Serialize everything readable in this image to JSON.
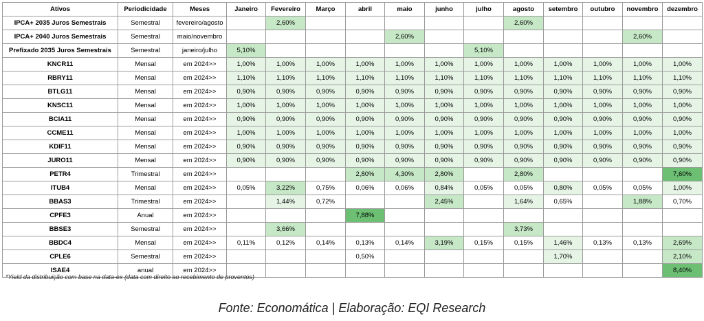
{
  "headers": [
    "Ativos",
    "Periodicidade",
    "Meses",
    "Janeiro",
    "Fevereiro",
    "Março",
    "abril",
    "maio",
    "junho",
    "julho",
    "agosto",
    "setembro",
    "outubro",
    "novembro",
    "dezembro"
  ],
  "colors": {
    "light": "#e6f4e6",
    "medium": "#c7e8c7",
    "dark": "#6cbf73"
  },
  "rows": [
    {
      "asset": "IPCA+ 2035 Juros Semestrais",
      "periodicity": "Semestral",
      "months": "fevereiro/agosto",
      "values": [
        "",
        "2,60%",
        "",
        "",
        "",
        "",
        "",
        "2,60%",
        "",
        "",
        "",
        ""
      ],
      "shades": [
        "",
        "m",
        "",
        "",
        "",
        "",
        "",
        "m",
        "",
        "",
        "",
        ""
      ]
    },
    {
      "asset": "IPCA+ 2040 Juros Semestrais",
      "periodicity": "Semestral",
      "months": "maio/novembro",
      "values": [
        "",
        "",
        "",
        "",
        "2,60%",
        "",
        "",
        "",
        "",
        "",
        "2,60%",
        ""
      ],
      "shades": [
        "",
        "",
        "",
        "",
        "m",
        "",
        "",
        "",
        "",
        "",
        "m",
        ""
      ]
    },
    {
      "asset": "Prefixado 2035 Juros Semestrais",
      "periodicity": "Semestral",
      "months": "janeiro/julho",
      "values": [
        "5,10%",
        "",
        "",
        "",
        "",
        "",
        "5,10%",
        "",
        "",
        "",
        "",
        ""
      ],
      "shades": [
        "m",
        "",
        "",
        "",
        "",
        "",
        "m",
        "",
        "",
        "",
        "",
        ""
      ]
    },
    {
      "asset": "KNCR11",
      "periodicity": "Mensal",
      "months": "em 2024>>",
      "values": [
        "1,00%",
        "1,00%",
        "1,00%",
        "1,00%",
        "1,00%",
        "1,00%",
        "1,00%",
        "1,00%",
        "1,00%",
        "1,00%",
        "1,00%",
        "1,00%"
      ],
      "shades": [
        "l",
        "l",
        "l",
        "l",
        "l",
        "l",
        "l",
        "l",
        "l",
        "l",
        "l",
        "l"
      ]
    },
    {
      "asset": "RBRY11",
      "periodicity": "Mensal",
      "months": "em 2024>>",
      "values": [
        "1,10%",
        "1,10%",
        "1,10%",
        "1,10%",
        "1,10%",
        "1,10%",
        "1,10%",
        "1,10%",
        "1,10%",
        "1,10%",
        "1,10%",
        "1,10%"
      ],
      "shades": [
        "l",
        "l",
        "l",
        "l",
        "l",
        "l",
        "l",
        "l",
        "l",
        "l",
        "l",
        "l"
      ]
    },
    {
      "asset": "BTLG11",
      "periodicity": "Mensal",
      "months": "em 2024>>",
      "values": [
        "0,90%",
        "0,90%",
        "0,90%",
        "0,90%",
        "0,90%",
        "0,90%",
        "0,90%",
        "0,90%",
        "0,90%",
        "0,90%",
        "0,90%",
        "0,90%"
      ],
      "shades": [
        "l",
        "l",
        "l",
        "l",
        "l",
        "l",
        "l",
        "l",
        "l",
        "l",
        "l",
        "l"
      ]
    },
    {
      "asset": "KNSC11",
      "periodicity": "Mensal",
      "months": "em 2024>>",
      "values": [
        "1,00%",
        "1,00%",
        "1,00%",
        "1,00%",
        "1,00%",
        "1,00%",
        "1,00%",
        "1,00%",
        "1,00%",
        "1,00%",
        "1,00%",
        "1,00%"
      ],
      "shades": [
        "l",
        "l",
        "l",
        "l",
        "l",
        "l",
        "l",
        "l",
        "l",
        "l",
        "l",
        "l"
      ]
    },
    {
      "asset": "BCIA11",
      "periodicity": "Mensal",
      "months": "em 2024>>",
      "values": [
        "0,90%",
        "0,90%",
        "0,90%",
        "0,90%",
        "0,90%",
        "0,90%",
        "0,90%",
        "0,90%",
        "0,90%",
        "0,90%",
        "0,90%",
        "0,90%"
      ],
      "shades": [
        "l",
        "l",
        "l",
        "l",
        "l",
        "l",
        "l",
        "l",
        "l",
        "l",
        "l",
        "l"
      ]
    },
    {
      "asset": "CCME11",
      "periodicity": "Mensal",
      "months": "em 2024>>",
      "values": [
        "1,00%",
        "1,00%",
        "1,00%",
        "1,00%",
        "1,00%",
        "1,00%",
        "1,00%",
        "1,00%",
        "1,00%",
        "1,00%",
        "1,00%",
        "1,00%"
      ],
      "shades": [
        "l",
        "l",
        "l",
        "l",
        "l",
        "l",
        "l",
        "l",
        "l",
        "l",
        "l",
        "l"
      ]
    },
    {
      "asset": "KDIF11",
      "periodicity": "Mensal",
      "months": "em 2024>>",
      "values": [
        "0,90%",
        "0,90%",
        "0,90%",
        "0,90%",
        "0,90%",
        "0,90%",
        "0,90%",
        "0,90%",
        "0,90%",
        "0,90%",
        "0,90%",
        "0,90%"
      ],
      "shades": [
        "l",
        "l",
        "l",
        "l",
        "l",
        "l",
        "l",
        "l",
        "l",
        "l",
        "l",
        "l"
      ]
    },
    {
      "asset": "JURO11",
      "periodicity": "Mensal",
      "months": "em 2024>>",
      "values": [
        "0,90%",
        "0,90%",
        "0,90%",
        "0,90%",
        "0,90%",
        "0,90%",
        "0,90%",
        "0,90%",
        "0,90%",
        "0,90%",
        "0,90%",
        "0,90%"
      ],
      "shades": [
        "l",
        "l",
        "l",
        "l",
        "l",
        "l",
        "l",
        "l",
        "l",
        "l",
        "l",
        "l"
      ]
    },
    {
      "asset": "PETR4",
      "periodicity": "Trimestral",
      "months": "em 2024>>",
      "values": [
        "",
        "",
        "",
        "2,80%",
        "4,30%",
        "2,80%",
        "",
        "2,80%",
        "",
        "",
        "",
        "7,60%"
      ],
      "shades": [
        "",
        "",
        "",
        "m",
        "m",
        "m",
        "",
        "m",
        "",
        "",
        "",
        "d"
      ]
    },
    {
      "asset": "ITUB4",
      "periodicity": "Mensal",
      "months": "em 2024>>",
      "values": [
        "0,05%",
        "3,22%",
        "0,75%",
        "0,06%",
        "0,06%",
        "0,84%",
        "0,05%",
        "0,05%",
        "0,80%",
        "0,05%",
        "0,05%",
        "1,00%"
      ],
      "shades": [
        "",
        "m",
        "",
        "",
        "",
        "l",
        "",
        "",
        "l",
        "",
        "",
        "l"
      ]
    },
    {
      "asset": "BBAS3",
      "periodicity": "Trimestral",
      "months": "em 2024>>",
      "values": [
        "",
        "1,44%",
        "0,72%",
        "",
        "",
        "2,45%",
        "",
        "1,64%",
        "0,65%",
        "",
        "1,88%",
        "0,70%"
      ],
      "shades": [
        "",
        "l",
        "",
        "",
        "",
        "m",
        "",
        "l",
        "",
        "",
        "m",
        ""
      ]
    },
    {
      "asset": "CPFE3",
      "periodicity": "Anual",
      "months": "em 2024>>",
      "values": [
        "",
        "",
        "",
        "7,88%",
        "",
        "",
        "",
        "",
        "",
        "",
        "",
        ""
      ],
      "shades": [
        "",
        "",
        "",
        "d",
        "",
        "",
        "",
        "",
        "",
        "",
        "",
        ""
      ]
    },
    {
      "asset": "BBSE3",
      "periodicity": "Semestral",
      "months": "em 2024>>",
      "values": [
        "",
        "3,66%",
        "",
        "",
        "",
        "",
        "",
        "3,73%",
        "",
        "",
        "",
        ""
      ],
      "shades": [
        "",
        "m",
        "",
        "",
        "",
        "",
        "",
        "m",
        "",
        "",
        "",
        ""
      ]
    },
    {
      "asset": "BBDC4",
      "periodicity": "Mensal",
      "months": "em 2024>>",
      "values": [
        "0,11%",
        "0,12%",
        "0,14%",
        "0,13%",
        "0,14%",
        "3,19%",
        "0,15%",
        "0,15%",
        "1,46%",
        "0,13%",
        "0,13%",
        "2,69%"
      ],
      "shades": [
        "",
        "",
        "",
        "",
        "",
        "m",
        "",
        "",
        "l",
        "",
        "",
        "m"
      ]
    },
    {
      "asset": "CPLE6",
      "periodicity": "Semestral",
      "months": "em 2024>>",
      "values": [
        "",
        "",
        "",
        "0,50%",
        "",
        "",
        "",
        "",
        "1,70%",
        "",
        "",
        "2,10%"
      ],
      "shades": [
        "",
        "",
        "",
        "",
        "",
        "",
        "",
        "",
        "l",
        "",
        "",
        "m"
      ]
    },
    {
      "asset": "ISAE4",
      "periodicity": "anual",
      "months": "em 2024>>",
      "values": [
        "",
        "",
        "",
        "",
        "",
        "",
        "",
        "",
        "",
        "",
        "",
        "8,40%"
      ],
      "shades": [
        "",
        "",
        "",
        "",
        "",
        "",
        "",
        "",
        "",
        "",
        "",
        "d"
      ]
    }
  ],
  "footnote": "*Yield da distribuição com base na data-ex (data com direito ao recebimento de proventos)",
  "source": "Fonte: Economática | Elaboração: EQI Research"
}
